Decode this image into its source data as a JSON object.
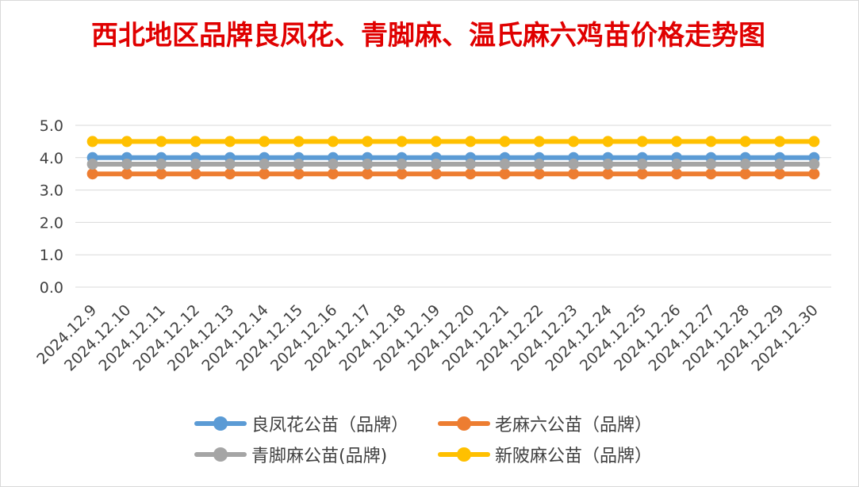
{
  "chart_data": {
    "type": "line",
    "title": "西北地区品牌良凤花、青脚麻、温氏麻六鸡苗价格走势图",
    "categories": [
      "2024.12.9",
      "2024.12.10",
      "2024.12.11",
      "2024.12.12",
      "2024.12.13",
      "2024.12.14",
      "2024.12.15",
      "2024.12.16",
      "2024.12.17",
      "2024.12.18",
      "2024.12.19",
      "2024.12.20",
      "2024.12.21",
      "2024.12.22",
      "2024.12.23",
      "2024.12.24",
      "2024.12.25",
      "2024.12.26",
      "2024.12.27",
      "2024.12.28",
      "2024.12.29",
      "2024.12.30"
    ],
    "yticks": [
      "0.0",
      "1.0",
      "2.0",
      "3.0",
      "4.0",
      "5.0"
    ],
    "ylim": [
      0,
      5
    ],
    "grid": true,
    "legend_position": "bottom",
    "series": [
      {
        "name": "良凤花公苗（品牌）",
        "color": "#5b9bd5",
        "values": [
          4.0,
          4.0,
          4.0,
          4.0,
          4.0,
          4.0,
          4.0,
          4.0,
          4.0,
          4.0,
          4.0,
          4.0,
          4.0,
          4.0,
          4.0,
          4.0,
          4.0,
          4.0,
          4.0,
          4.0,
          4.0,
          4.0
        ]
      },
      {
        "name": "老麻六公苗（品牌）",
        "color": "#ed7d31",
        "values": [
          3.5,
          3.5,
          3.5,
          3.5,
          3.5,
          3.5,
          3.5,
          3.5,
          3.5,
          3.5,
          3.5,
          3.5,
          3.5,
          3.5,
          3.5,
          3.5,
          3.5,
          3.5,
          3.5,
          3.5,
          3.5,
          3.5
        ]
      },
      {
        "name": "青脚麻公苗(品牌)",
        "color": "#a5a5a5",
        "values": [
          3.8,
          3.8,
          3.8,
          3.8,
          3.8,
          3.8,
          3.8,
          3.8,
          3.8,
          3.8,
          3.8,
          3.8,
          3.8,
          3.8,
          3.8,
          3.8,
          3.8,
          3.8,
          3.8,
          3.8,
          3.8,
          3.8
        ]
      },
      {
        "name": "新陂麻公苗（品牌）",
        "color": "#ffc000",
        "values": [
          4.5,
          4.5,
          4.5,
          4.5,
          4.5,
          4.5,
          4.5,
          4.5,
          4.5,
          4.5,
          4.5,
          4.5,
          4.5,
          4.5,
          4.5,
          4.5,
          4.5,
          4.5,
          4.5,
          4.5,
          4.5,
          4.5
        ]
      }
    ]
  }
}
